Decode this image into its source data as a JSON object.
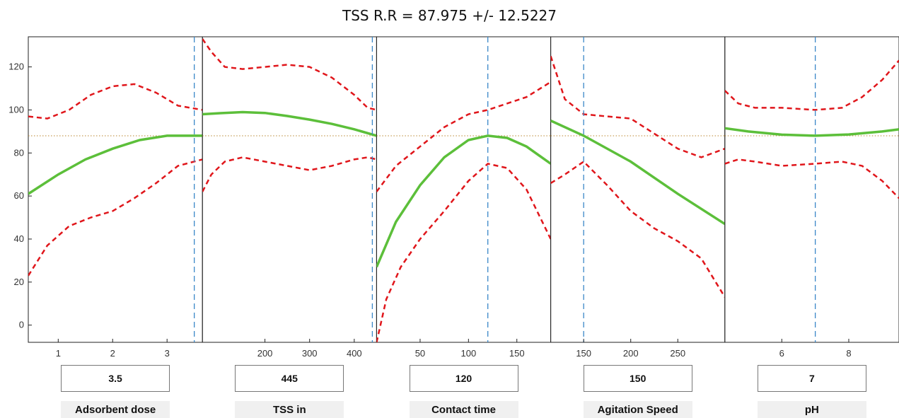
{
  "title": "TSS R.R = 87.975 +/- 12.5227",
  "colors": {
    "fit": "#5cbf3a",
    "bounds": "#e0161b",
    "cursor": "#3a87c8",
    "reference": "#b8862e",
    "axis": "#222222"
  },
  "chart_data": {
    "type": "line",
    "chart_kind": "prediction profiler",
    "ylim": [
      -8,
      134
    ],
    "yticks": [
      0,
      20,
      40,
      60,
      80,
      100,
      120
    ],
    "reference_y": 87.975,
    "panels": [
      {
        "factor": "Adsorbent dose",
        "value_label": "3.5",
        "current": 3.5,
        "xlim": [
          0.45,
          3.65
        ],
        "xticks": [
          1,
          2,
          3
        ],
        "fit": {
          "x": [
            0.45,
            1.0,
            1.5,
            2.0,
            2.5,
            3.0,
            3.5,
            3.65
          ],
          "y": [
            61,
            70,
            77,
            82,
            86,
            88,
            88,
            88
          ]
        },
        "upper": {
          "x": [
            0.45,
            0.8,
            1.2,
            1.6,
            2.0,
            2.4,
            2.8,
            3.2,
            3.65
          ],
          "y": [
            97,
            96,
            100,
            107,
            111,
            112,
            108,
            102,
            100
          ]
        },
        "lower": {
          "x": [
            0.45,
            0.8,
            1.2,
            1.6,
            2.0,
            2.4,
            2.8,
            3.2,
            3.65
          ],
          "y": [
            23,
            37,
            46,
            50,
            53,
            59,
            66,
            74,
            77
          ]
        }
      },
      {
        "factor": "TSS in",
        "value_label": "445",
        "current": 445,
        "xlim": [
          60,
          450
        ],
        "xticks": [
          200,
          300,
          400
        ],
        "fit": {
          "x": [
            60,
            100,
            150,
            200,
            250,
            300,
            350,
            400,
            450
          ],
          "y": [
            98,
            98.5,
            99,
            98.6,
            97.2,
            95.5,
            93.5,
            91,
            88
          ]
        },
        "upper": {
          "x": [
            60,
            80,
            110,
            150,
            200,
            250,
            300,
            350,
            400,
            430,
            450
          ],
          "y": [
            133,
            127,
            120,
            119,
            120,
            121,
            120,
            115,
            107,
            101,
            100
          ]
        },
        "lower": {
          "x": [
            60,
            80,
            110,
            150,
            200,
            250,
            300,
            350,
            400,
            430,
            450
          ],
          "y": [
            62,
            70,
            76,
            78,
            76,
            74,
            72,
            74,
            77,
            78,
            77
          ]
        }
      },
      {
        "factor": "Contact time",
        "value_label": "120",
        "current": 120,
        "xlim": [
          5,
          185
        ],
        "xticks": [
          50,
          100,
          150
        ],
        "fit": {
          "x": [
            5,
            25,
            50,
            75,
            100,
            120,
            140,
            160,
            185
          ],
          "y": [
            27,
            48,
            65,
            78,
            86,
            88,
            87,
            83,
            75
          ]
        },
        "upper": {
          "x": [
            5,
            25,
            50,
            75,
            100,
            120,
            140,
            160,
            185
          ],
          "y": [
            62,
            74,
            83,
            92,
            98,
            100,
            103,
            106,
            113
          ]
        },
        "lower": {
          "x": [
            5,
            15,
            30,
            50,
            75,
            100,
            120,
            140,
            160,
            185
          ],
          "y": [
            -8,
            12,
            27,
            40,
            53,
            67,
            75,
            73,
            63,
            40
          ]
        }
      },
      {
        "factor": "Agitation Speed",
        "value_label": "150",
        "current": 150,
        "xlim": [
          115,
          300
        ],
        "xticks": [
          150,
          200,
          250
        ],
        "fit": {
          "x": [
            115,
            150,
            200,
            250,
            300
          ],
          "y": [
            95,
            88,
            76,
            61,
            47
          ]
        },
        "upper": {
          "x": [
            115,
            130,
            150,
            175,
            200,
            225,
            250,
            275,
            300
          ],
          "y": [
            125,
            105,
            98,
            97,
            96,
            89,
            82,
            78,
            82
          ]
        },
        "lower": {
          "x": [
            115,
            130,
            150,
            175,
            200,
            225,
            250,
            275,
            300
          ],
          "y": [
            66,
            70,
            76,
            65,
            53,
            45,
            39,
            31,
            13
          ]
        }
      },
      {
        "factor": "pH",
        "value_label": "7",
        "current": 7,
        "xlim": [
          4.3,
          9.5
        ],
        "xticks": [
          6,
          8
        ],
        "fit": {
          "x": [
            4.3,
            5.0,
            6.0,
            7.0,
            8.0,
            9.0,
            9.5
          ],
          "y": [
            91.5,
            90,
            88.5,
            88,
            88.6,
            90,
            91
          ]
        },
        "upper": {
          "x": [
            4.3,
            4.7,
            5.2,
            6.0,
            7.0,
            7.8,
            8.4,
            9.0,
            9.5
          ],
          "y": [
            109,
            103,
            101,
            101,
            100,
            101,
            106,
            114,
            123
          ]
        },
        "lower": {
          "x": [
            4.3,
            4.7,
            5.2,
            6.0,
            7.0,
            7.8,
            8.4,
            9.0,
            9.5
          ],
          "y": [
            75,
            77,
            76,
            74,
            75,
            76,
            74,
            67,
            59
          ]
        }
      }
    ]
  }
}
